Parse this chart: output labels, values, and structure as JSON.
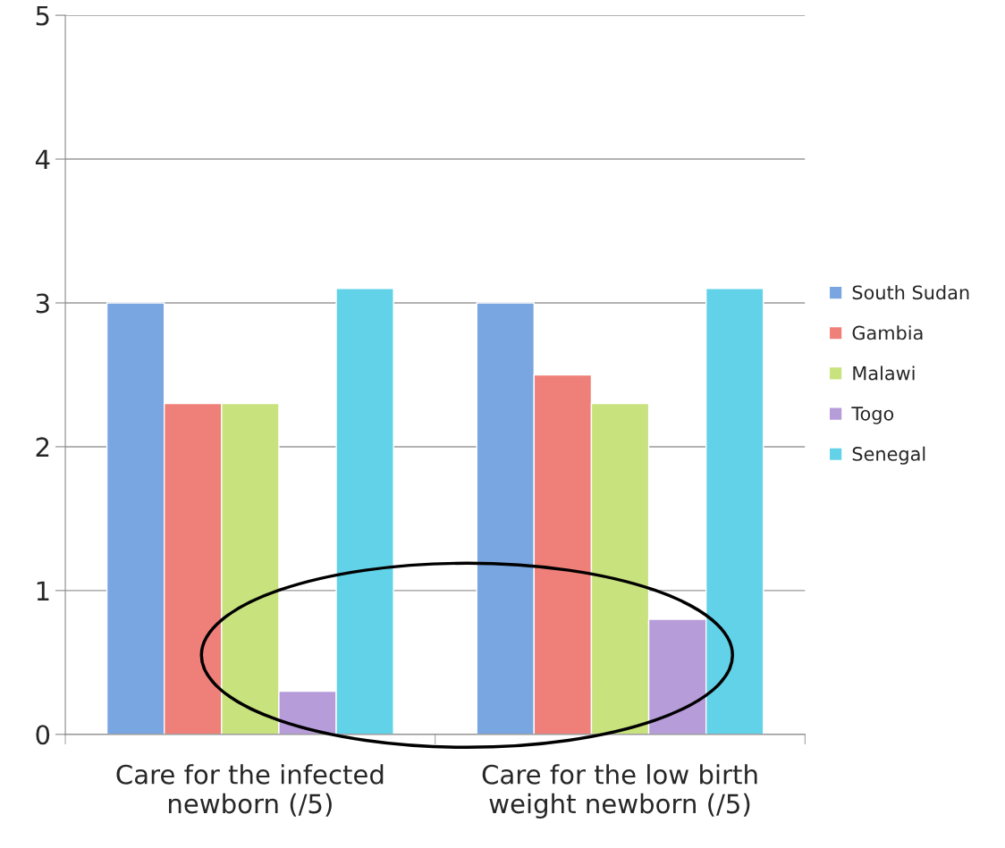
{
  "chart_data": {
    "type": "bar",
    "categories": [
      "Care for the infected\nnewborn (/5)",
      "Care for the low birth\nweight newborn (/5)"
    ],
    "series": [
      {
        "name": "South Sudan",
        "color": "#79a5e0",
        "values": [
          3,
          3
        ]
      },
      {
        "name": "Gambia",
        "color": "#ef7f79",
        "values": [
          2.3,
          2.5
        ]
      },
      {
        "name": "Malawi",
        "color": "#c8e27e",
        "values": [
          2.3,
          2.3
        ]
      },
      {
        "name": "Togo",
        "color": "#b69cd8",
        "values": [
          0.3,
          0.8
        ]
      },
      {
        "name": "Senegal",
        "color": "#62d2e8",
        "values": [
          3.1,
          3.1
        ]
      }
    ],
    "ylim": [
      0,
      5
    ],
    "yticks": [
      0,
      1,
      2,
      3,
      4,
      5
    ],
    "grid": "y",
    "legend": "right"
  }
}
